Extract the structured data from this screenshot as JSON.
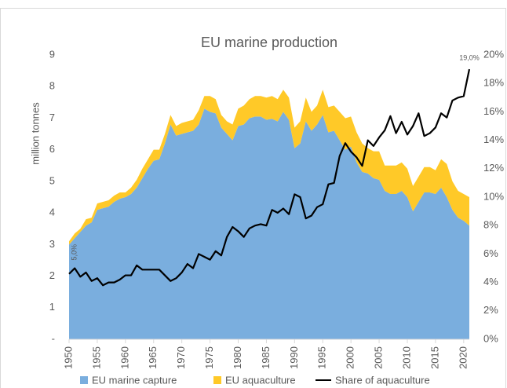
{
  "chart_data": {
    "type": "stacked-area-line",
    "title": "EU marine production",
    "y_label": "million tonnes",
    "x": [
      1950,
      1951,
      1952,
      1953,
      1954,
      1955,
      1956,
      1957,
      1958,
      1959,
      1960,
      1961,
      1962,
      1963,
      1964,
      1965,
      1966,
      1967,
      1968,
      1969,
      1970,
      1971,
      1972,
      1973,
      1974,
      1975,
      1976,
      1977,
      1978,
      1979,
      1980,
      1981,
      1982,
      1983,
      1984,
      1985,
      1986,
      1987,
      1988,
      1989,
      1990,
      1991,
      1992,
      1993,
      1994,
      1995,
      1996,
      1997,
      1998,
      1999,
      2000,
      2001,
      2002,
      2003,
      2004,
      2005,
      2006,
      2007,
      2008,
      2009,
      2010,
      2011,
      2012,
      2013,
      2014,
      2015,
      2016,
      2017,
      2018,
      2019,
      2020,
      2021
    ],
    "xlim": [
      1950,
      2021
    ],
    "xticks": [
      1950,
      1955,
      1960,
      1965,
      1970,
      1975,
      1980,
      1985,
      1990,
      1995,
      2000,
      2005,
      2010,
      2015,
      2020
    ],
    "ylim": [
      0,
      9
    ],
    "yticks": [
      {
        "value": 0,
        "label": "-"
      },
      1,
      2,
      3,
      4,
      5,
      6,
      7,
      8,
      9
    ],
    "y2lim": [
      0,
      20
    ],
    "y2ticks": [
      {
        "value": 0,
        "label": "0%"
      },
      {
        "value": 2,
        "label": "2%"
      },
      {
        "value": 4,
        "label": "4%"
      },
      {
        "value": 6,
        "label": "6%"
      },
      {
        "value": 8,
        "label": "8%"
      },
      {
        "value": 10,
        "label": "10%"
      },
      {
        "value": 12,
        "label": "12%"
      },
      {
        "value": 14,
        "label": "14%"
      },
      {
        "value": 16,
        "label": "16%"
      },
      {
        "value": 18,
        "label": "18%"
      },
      {
        "value": 20,
        "label": "20%"
      }
    ],
    "series": [
      {
        "name": "EU marine capture",
        "color": "#7aaede",
        "kind": "area",
        "values": [
          3.0,
          3.2,
          3.4,
          3.6,
          3.7,
          4.1,
          4.15,
          4.2,
          4.35,
          4.45,
          4.5,
          4.6,
          4.8,
          5.1,
          5.4,
          5.65,
          5.7,
          6.2,
          6.8,
          6.45,
          6.5,
          6.55,
          6.6,
          6.8,
          7.3,
          7.2,
          7.15,
          6.7,
          6.5,
          6.3,
          6.75,
          6.8,
          7.0,
          7.05,
          7.05,
          6.95,
          6.98,
          6.9,
          7.2,
          6.95,
          6.05,
          6.2,
          6.9,
          6.6,
          6.8,
          7.1,
          6.55,
          6.6,
          6.3,
          6.0,
          6.1,
          5.6,
          5.3,
          5.25,
          5.1,
          5.05,
          4.7,
          4.6,
          4.6,
          4.7,
          4.5,
          4.05,
          4.35,
          4.65,
          4.65,
          4.6,
          4.8,
          4.5,
          4.1,
          3.85,
          3.75,
          3.6
        ]
      },
      {
        "name": "EU aquaculture",
        "color": "#ffc928",
        "kind": "area",
        "values": [
          0.1,
          0.15,
          0.1,
          0.2,
          0.15,
          0.2,
          0.2,
          0.2,
          0.2,
          0.2,
          0.15,
          0.2,
          0.25,
          0.3,
          0.3,
          0.35,
          0.3,
          0.3,
          0.3,
          0.3,
          0.35,
          0.35,
          0.35,
          0.45,
          0.4,
          0.5,
          0.45,
          0.4,
          0.4,
          0.5,
          0.55,
          0.6,
          0.6,
          0.65,
          0.65,
          0.7,
          0.72,
          0.7,
          0.7,
          0.7,
          0.65,
          0.7,
          0.75,
          0.6,
          0.6,
          0.8,
          0.8,
          0.8,
          0.9,
          1.0,
          0.95,
          0.95,
          0.9,
          0.8,
          0.85,
          0.9,
          0.8,
          0.9,
          0.9,
          0.9,
          0.9,
          0.8,
          0.8,
          0.8,
          0.8,
          0.75,
          0.9,
          1.05,
          0.9,
          0.85,
          0.85,
          0.9
        ]
      },
      {
        "name": "Share of aquaculture",
        "color": "#000000",
        "kind": "line",
        "axis": "y2",
        "values": [
          4.6,
          5.0,
          4.4,
          4.7,
          4.1,
          4.3,
          3.8,
          4.0,
          4.0,
          4.2,
          4.5,
          4.5,
          5.2,
          4.9,
          4.9,
          4.9,
          4.9,
          4.5,
          4.1,
          4.3,
          4.7,
          5.3,
          5.0,
          6.0,
          5.8,
          5.6,
          6.2,
          5.9,
          7.2,
          7.9,
          7.6,
          7.2,
          7.8,
          8.0,
          8.1,
          8.0,
          9.1,
          8.9,
          9.2,
          8.8,
          10.2,
          10.0,
          8.5,
          8.7,
          9.3,
          9.5,
          10.9,
          11.0,
          12.9,
          13.8,
          13.2,
          12.8,
          12.2,
          14.0,
          13.6,
          14.2,
          14.7,
          15.7,
          14.5,
          15.3,
          14.4,
          15.0,
          15.9,
          14.3,
          14.5,
          14.9,
          15.9,
          15.6,
          16.8,
          17.0,
          17.1,
          19.0
        ],
        "value_labels": [
          null,
          "5,0%",
          null,
          null,
          null,
          null,
          null,
          null,
          null,
          null,
          null,
          null,
          null,
          null,
          null,
          null,
          null,
          null,
          null,
          null,
          null,
          null,
          null,
          null,
          null,
          null,
          null,
          null,
          null,
          null,
          null,
          null,
          null,
          null,
          null,
          null,
          null,
          null,
          null,
          null,
          null,
          null,
          null,
          null,
          null,
          null,
          null,
          null,
          null,
          null,
          null,
          null,
          null,
          null,
          null,
          null,
          null,
          null,
          null,
          null,
          null,
          null,
          null,
          null,
          null,
          null,
          null,
          null,
          null,
          null,
          null,
          "19,0%"
        ]
      }
    ]
  }
}
